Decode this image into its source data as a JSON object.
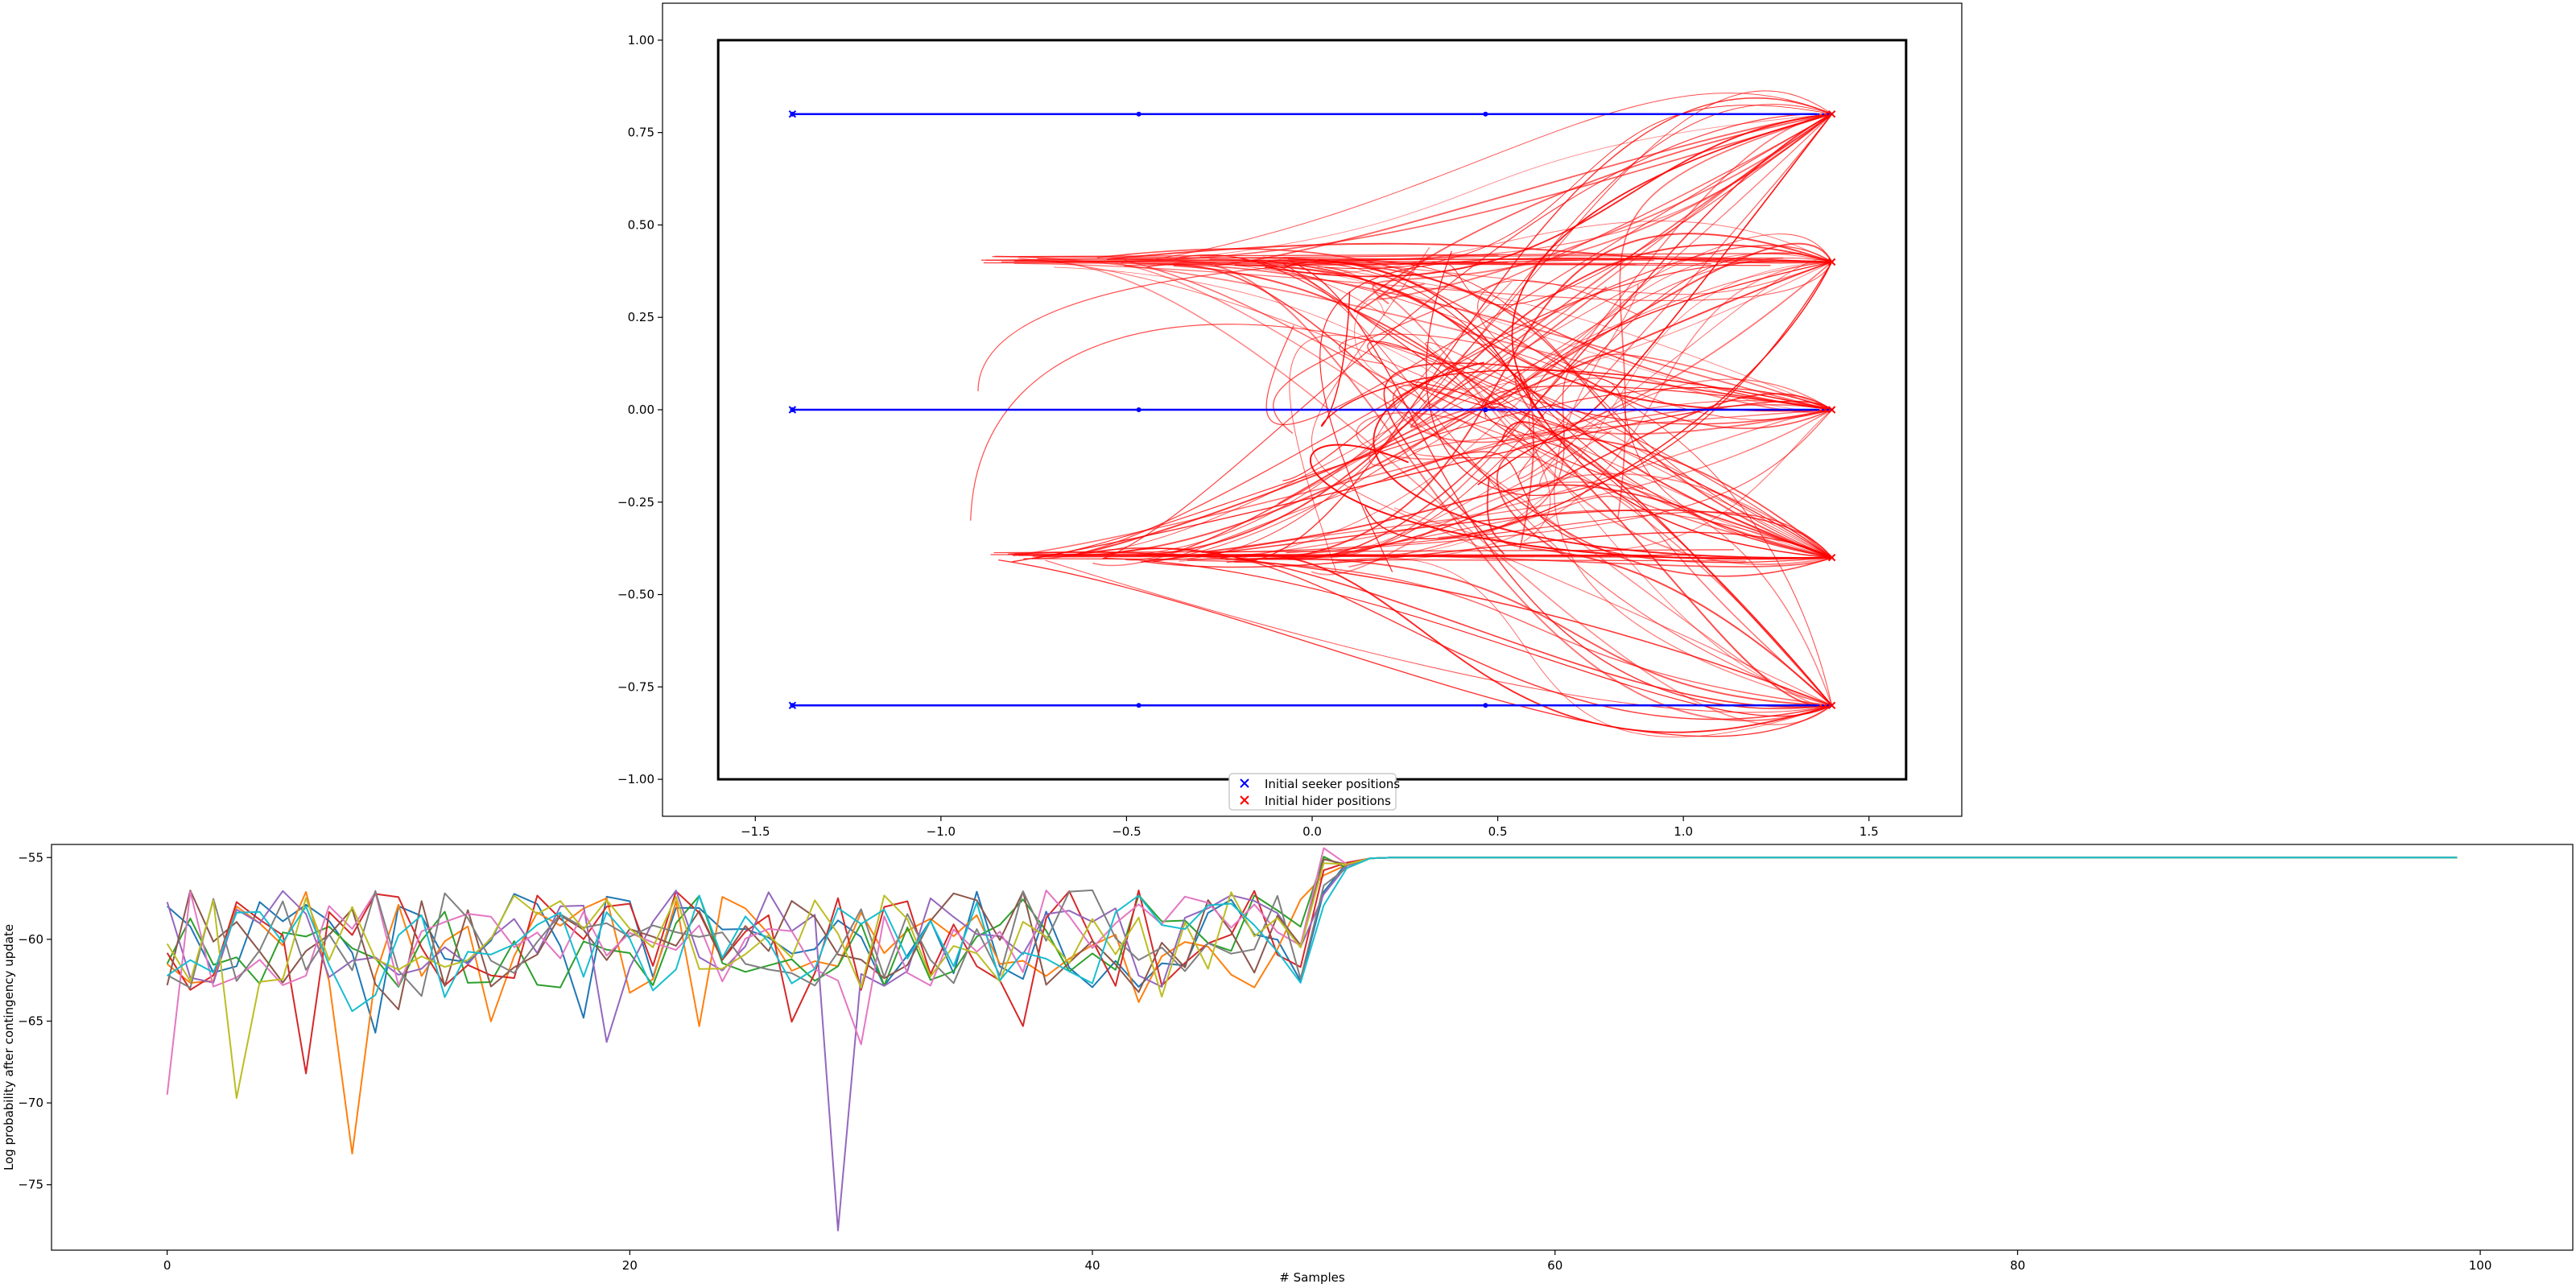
{
  "chart_data": [
    {
      "type": "line",
      "title": "",
      "xlim": [
        -1.75,
        1.75
      ],
      "ylim": [
        -1.1,
        1.1
      ],
      "x_ticks": [
        -1.5,
        -1.0,
        -0.5,
        0.0,
        0.5,
        1.0,
        1.5
      ],
      "x_tick_labels": [
        "−1.5",
        "−1.0",
        "−0.5",
        "0.0",
        "0.5",
        "1.0",
        "1.5"
      ],
      "y_ticks": [
        -1.0,
        -0.75,
        -0.5,
        -0.25,
        0.0,
        0.25,
        0.5,
        0.75,
        1.0
      ],
      "y_tick_labels": [
        "−1.00",
        "−0.75",
        "−0.50",
        "−0.25",
        "0.00",
        "0.25",
        "0.50",
        "0.75",
        "1.00"
      ],
      "boundary": {
        "x": [
          -1.6,
          1.6
        ],
        "y": [
          -1.0,
          1.0
        ]
      },
      "seeker_paths": [
        {
          "y": 0.8,
          "x_start": -1.4,
          "x_end": 1.4,
          "markers": [
            -1.4,
            -0.467,
            0.467
          ]
        },
        {
          "y": 0.0,
          "x_start": -1.4,
          "x_end": 1.4,
          "markers": [
            -1.4,
            -0.467,
            0.467
          ]
        },
        {
          "y": -0.8,
          "x_start": -1.4,
          "x_end": 1.4,
          "markers": [
            -1.4,
            -0.467,
            0.467
          ]
        }
      ],
      "seeker_initial": [
        [
          -1.4,
          0.8
        ],
        [
          -1.4,
          0.0
        ],
        [
          -1.4,
          -0.8
        ]
      ],
      "hider_initial": [
        [
          1.4,
          0.8
        ],
        [
          1.4,
          0.4
        ],
        [
          1.4,
          0.0
        ],
        [
          1.4,
          -0.4
        ],
        [
          1.4,
          -0.8
        ]
      ],
      "hider_attractors": [
        0.4,
        -0.4
      ],
      "legend": [
        {
          "label": "Initial seeker positions",
          "color": "#0000ff",
          "marker": "x"
        },
        {
          "label": "Initial hider positions",
          "color": "#ff0000",
          "marker": "x"
        }
      ],
      "legend_loc": "lower center",
      "colors": {
        "seeker": "#0000ff",
        "hider": "#ff0000",
        "boundary": "#000000"
      }
    },
    {
      "type": "line",
      "title": "",
      "xlabel": "# Samples",
      "ylabel": "Log probability after contingency update",
      "xlim": [
        -5,
        104
      ],
      "ylim": [
        -79,
        -54.2
      ],
      "x_ticks": [
        0,
        20,
        40,
        60,
        80,
        100
      ],
      "y_ticks": [
        -75,
        -70,
        -65,
        -60,
        -55
      ],
      "y_tick_labels": [
        "−75",
        "−70",
        "−65",
        "−60",
        "−55"
      ],
      "converged_value": -55.0,
      "x_range": [
        0,
        99
      ],
      "series_colors": [
        "#1f77b4",
        "#ff7f0e",
        "#2ca02c",
        "#d62728",
        "#9467bd",
        "#8c564b",
        "#e377c2",
        "#7f7f7f",
        "#bcbd22",
        "#17becf"
      ],
      "notable_points": [
        {
          "color": "#9467bd",
          "x": 29,
          "y": -77.8
        },
        {
          "color": "#ff7f0e",
          "x": 8,
          "y": -73.1
        },
        {
          "color": "#bcbd22",
          "x": 3,
          "y": -69.7
        },
        {
          "color": "#e377c2",
          "x": 0,
          "y": -69.5
        },
        {
          "color": "#d62728",
          "x": 6,
          "y": -68.2
        }
      ],
      "legend": []
    }
  ]
}
